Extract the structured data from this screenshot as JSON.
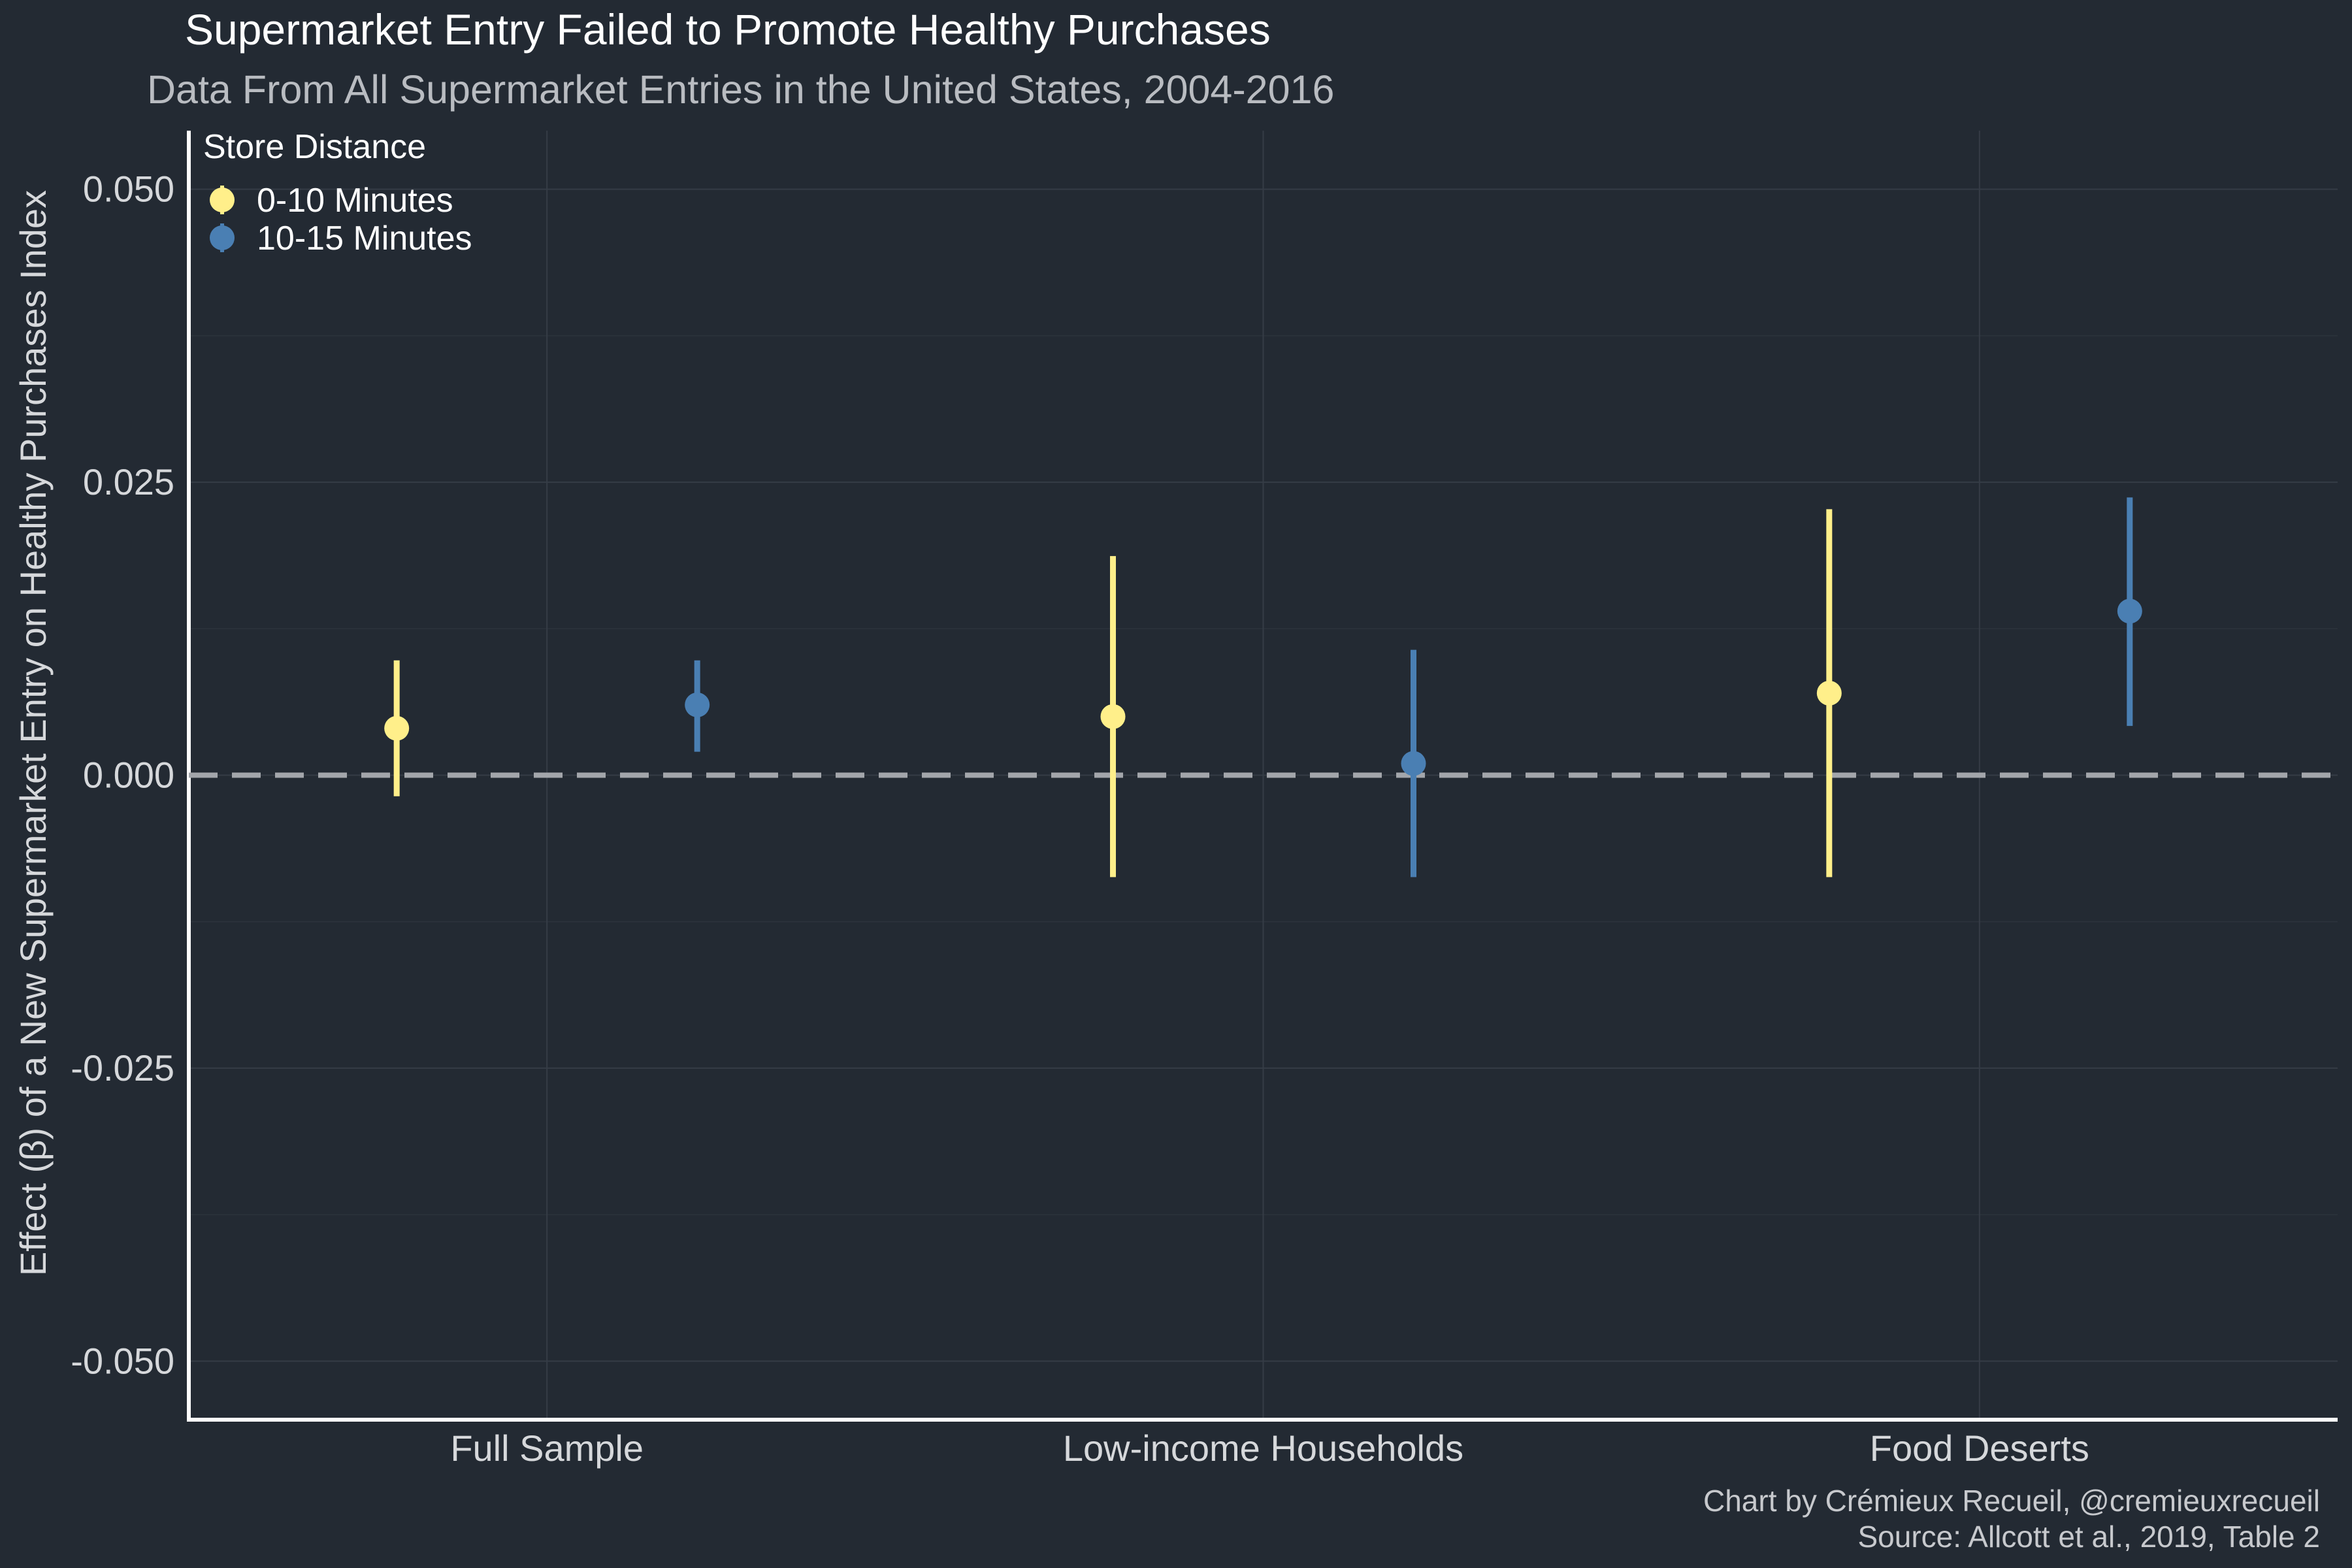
{
  "chart_data": {
    "type": "scatter",
    "title": "Supermarket Entry Failed to Promote Healthy Purchases",
    "subtitle": "Data From All Supermarket Entries in the United States, 2004-2016",
    "xlabel": "",
    "ylabel": "Effect (β) of a New Supermarket Entry on Healthy Purchases Index",
    "categories": [
      "Full Sample",
      "Low-income Households",
      "Food Deserts"
    ],
    "ylim": [
      -0.055,
      0.055
    ],
    "yticks": [
      -0.05,
      -0.025,
      0.0,
      0.025,
      0.05
    ],
    "ytick_labels": [
      "-0.050",
      "-0.025",
      "0.000",
      "0.025",
      "0.050"
    ],
    "reference_line": {
      "y": 0.0,
      "style": "dashed",
      "color": "#a3a6ab"
    },
    "grid": true,
    "legend": {
      "title": "Store Distance",
      "placement": "top-left"
    },
    "series": [
      {
        "name": "0-10 Minutes",
        "color": "#ffef8a",
        "values": [
          0.004,
          0.005,
          0.007
        ],
        "lower": [
          -0.0018,
          -0.0087,
          -0.0087
        ],
        "upper": [
          0.0098,
          0.0187,
          0.0227
        ]
      },
      {
        "name": "10-15 Minutes",
        "color": "#4a7fb3",
        "values": [
          0.006,
          0.001,
          0.014
        ],
        "lower": [
          0.002,
          -0.0087,
          0.0042
        ],
        "upper": [
          0.0098,
          0.0107,
          0.0237
        ]
      }
    ],
    "caption": [
      "Chart by Crémieux Recueil, @cremieuxrecueil",
      "Source: Allcott et al., 2019, Table 2"
    ]
  }
}
